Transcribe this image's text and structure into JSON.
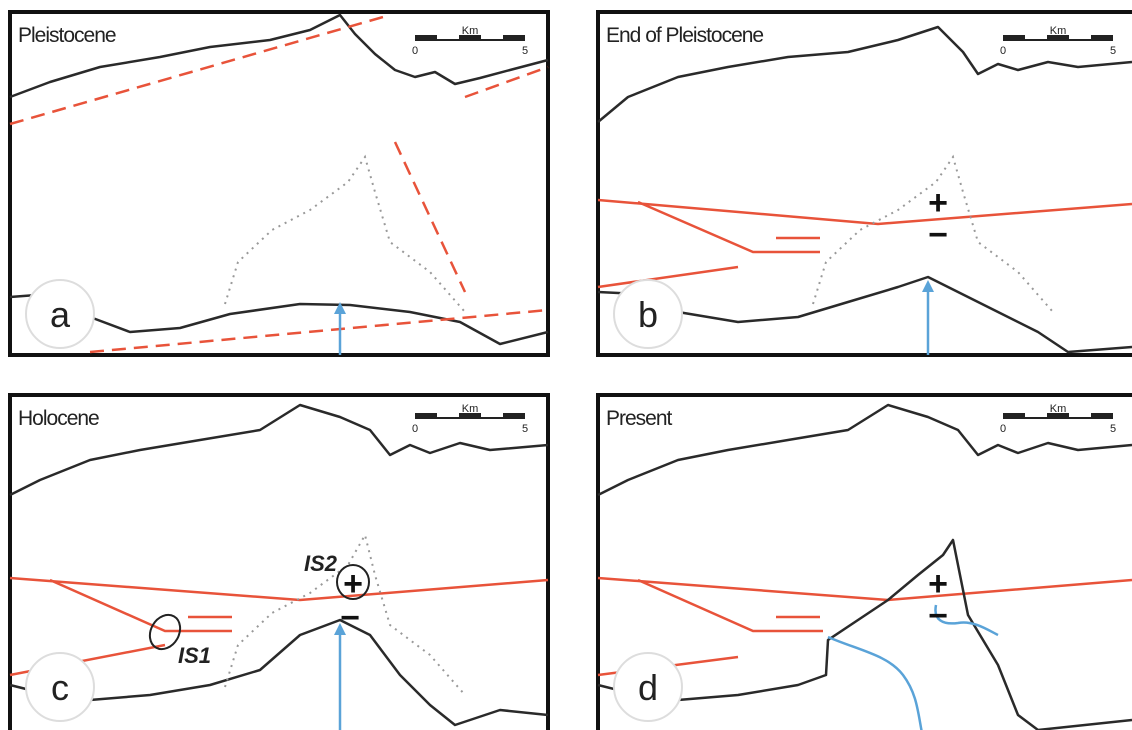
{
  "panels": [
    {
      "title": "Pleistocene",
      "letter": "a",
      "scale": {
        "unit": "Km",
        "start": "0",
        "end": "5"
      }
    },
    {
      "title": "End of Pleistocene",
      "letter": "b",
      "scale": {
        "unit": "Km",
        "start": "0",
        "end": "5"
      },
      "signs": [
        "+",
        "−"
      ]
    },
    {
      "title": "Holocene",
      "letter": "c",
      "scale": {
        "unit": "Km",
        "start": "0",
        "end": "5"
      },
      "signs": [
        "+",
        "−"
      ],
      "labels": [
        "IS1",
        "IS2"
      ]
    },
    {
      "title": "Present",
      "letter": "d",
      "scale": {
        "unit": "Km",
        "start": "0",
        "end": "5"
      },
      "signs": [
        "+",
        "−"
      ]
    }
  ]
}
